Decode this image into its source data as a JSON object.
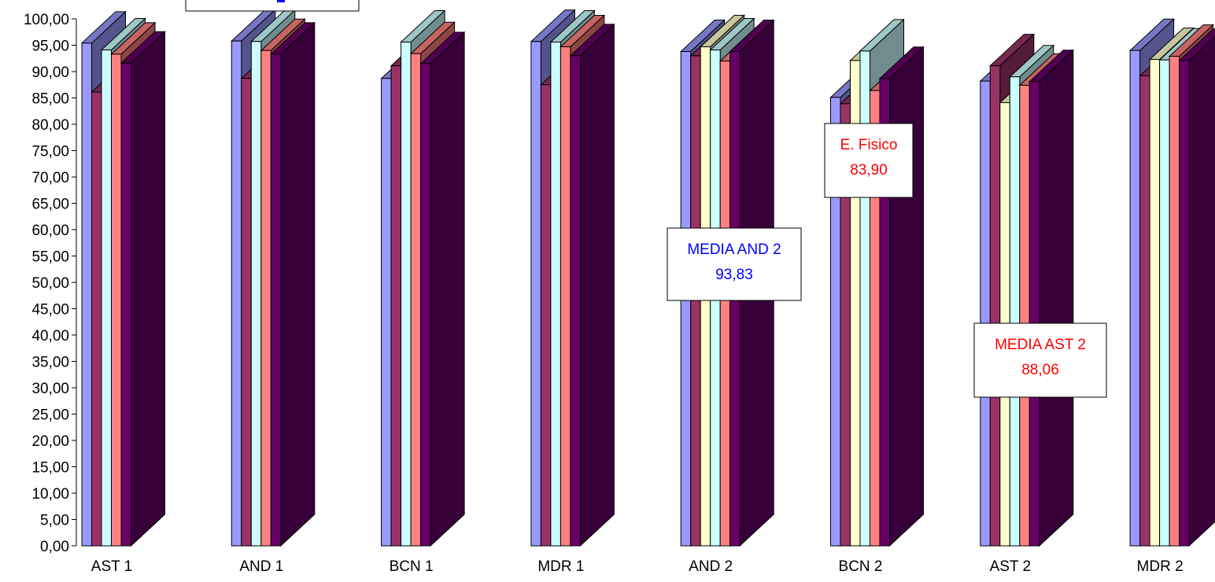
{
  "chart_data": {
    "type": "bar",
    "title": "",
    "xlabel": "",
    "ylabel": "",
    "ylim": [
      0,
      100
    ],
    "y_step": 5,
    "y_tick_format": "decimal-comma-2",
    "grid": false,
    "three_d": true,
    "categories": [
      "AST 1",
      "AND 1",
      "BCN 1",
      "MDR  1",
      "AND 2",
      "BCN 2",
      "AST 2",
      "MDR 2"
    ],
    "series": [
      {
        "color": "#9999ff",
        "values": [
          95.4,
          95.8,
          88.7,
          95.7,
          93.8,
          85.1,
          88.2,
          94.0
        ]
      },
      {
        "color": "#993366",
        "values": [
          86.1,
          88.7,
          91.1,
          87.5,
          93.0,
          83.9,
          91.1,
          89.2
        ]
      },
      {
        "color": "#ffffcc",
        "values": [
          null,
          null,
          null,
          null,
          94.7,
          92.1,
          84.1,
          92.3
        ]
      },
      {
        "color": "#ccffff",
        "values": [
          94.1,
          95.7,
          95.6,
          95.6,
          94.1,
          93.9,
          89.0,
          92.2
        ]
      },
      {
        "color": "#ff8080",
        "values": [
          93.3,
          94.0,
          93.4,
          94.7,
          92.0,
          86.4,
          87.4,
          92.9
        ]
      },
      {
        "color": "#660066",
        "values": [
          91.6,
          93.3,
          91.5,
          93.0,
          93.8,
          88.7,
          88.1,
          92.1
        ]
      }
    ],
    "annotations": [
      {
        "lines": [
          "MEDIA AND 2",
          "93,83"
        ],
        "color": "#0000ff"
      },
      {
        "lines": [
          "E. Fisico",
          "83,90"
        ],
        "color": "#ff0000"
      },
      {
        "lines": [
          "MEDIA AST 2",
          "88,06"
        ],
        "color": "#ff0000"
      }
    ],
    "top_callout_color": "#0000ff"
  }
}
